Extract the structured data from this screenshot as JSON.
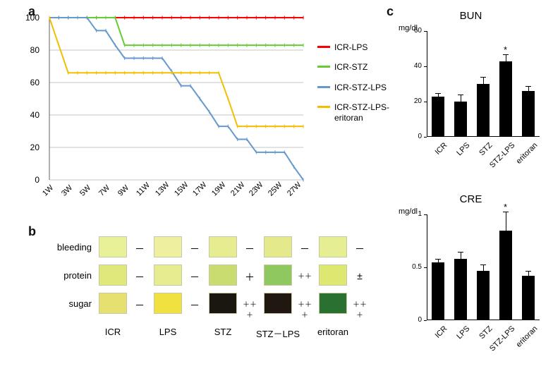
{
  "panel_a": {
    "label": "a",
    "type": "line",
    "xticks": [
      "1W",
      "3W",
      "5W",
      "7W",
      "9W",
      "11W",
      "13W",
      "15W",
      "17W",
      "19W",
      "21W",
      "23W",
      "25W",
      "27W"
    ],
    "ylim": [
      0,
      100
    ],
    "ytick_step": 20,
    "grid_color": "#b0b0b0",
    "background_color": "#ffffff",
    "series": [
      {
        "name": "ICR-LPS",
        "color": "#ff0000",
        "values": [
          100,
          100,
          100,
          100,
          100,
          100,
          100,
          100,
          100,
          100,
          100,
          100,
          100,
          100,
          100,
          100,
          100,
          100,
          100,
          100,
          100,
          100,
          100,
          100,
          100,
          100,
          100,
          100
        ]
      },
      {
        "name": "ICR-STZ",
        "color": "#66cc33",
        "values": [
          100,
          100,
          100,
          100,
          100,
          100,
          100,
          100,
          83,
          83,
          83,
          83,
          83,
          83,
          83,
          83,
          83,
          83,
          83,
          83,
          83,
          83,
          83,
          83,
          83,
          83,
          83,
          83
        ]
      },
      {
        "name": "ICR-STZ-LPS",
        "color": "#6699cc",
        "values": [
          100,
          100,
          100,
          100,
          100,
          92,
          92,
          83,
          75,
          75,
          75,
          75,
          75,
          67,
          58,
          58,
          50,
          42,
          33,
          33,
          25,
          25,
          17,
          17,
          17,
          17,
          8,
          0
        ]
      },
      {
        "name": "ICR-STZ-LPS-eritoran",
        "color": "#f0c000",
        "values": [
          100,
          83,
          66,
          66,
          66,
          66,
          66,
          66,
          66,
          66,
          66,
          66,
          66,
          66,
          66,
          66,
          66,
          66,
          66,
          50,
          33,
          33,
          33,
          33,
          33,
          33,
          33,
          33
        ]
      }
    ],
    "line_width": 2,
    "marker": "tick"
  },
  "panel_b": {
    "label": "b",
    "rows": [
      "bleeding",
      "protein",
      "sugar"
    ],
    "columns": [
      "ICR",
      "LPS",
      "STZ",
      "STZ－LPS",
      "eritoran"
    ],
    "pad_colors": [
      [
        "#e8f098",
        "#eef0a0",
        "#e6ec90",
        "#e4ea8c",
        "#e6ee94"
      ],
      [
        "#e0e87c",
        "#e6ec90",
        "#c8dc70",
        "#90c860",
        "#dce870"
      ],
      [
        "#e6e070",
        "#f0e040",
        "#1a1610",
        "#201810",
        "#2a7030"
      ]
    ],
    "results": [
      [
        "－",
        "－",
        "－",
        "－",
        "－"
      ],
      [
        "－",
        "－",
        "＋",
        "＋＋",
        "±"
      ],
      [
        "－",
        "－",
        "＋＋＋",
        "＋＋＋",
        "＋＋＋"
      ]
    ],
    "row_label_fontsize": 13,
    "result_fontsize": 14
  },
  "panel_c": {
    "label": "c",
    "charts": [
      {
        "title": "BUN",
        "ylabel": "mg/dl",
        "ylim": [
          0,
          60
        ],
        "yticks": [
          0,
          20,
          40,
          60
        ],
        "categories": [
          "ICR",
          "LPS",
          "STZ",
          "STZ-LPS",
          "eritoran"
        ],
        "values": [
          23,
          20,
          30,
          43,
          26
        ],
        "errors": [
          2,
          4,
          4,
          4,
          3
        ],
        "bar_color": "#000000",
        "bar_width": 0.55,
        "star_index": 3,
        "star": "*"
      },
      {
        "title": "CRE",
        "ylabel": "mg/dl",
        "ylim": [
          0,
          1
        ],
        "yticks": [
          0,
          0.5,
          1
        ],
        "categories": [
          "ICR",
          "LPS",
          "STZ",
          "STZ-LPS",
          "eritoran"
        ],
        "values": [
          0.55,
          0.58,
          0.47,
          0.85,
          0.42
        ],
        "errors": [
          0.03,
          0.07,
          0.06,
          0.18,
          0.05
        ],
        "bar_color": "#000000",
        "bar_width": 0.55,
        "star_index": 3,
        "star": "*"
      }
    ]
  }
}
